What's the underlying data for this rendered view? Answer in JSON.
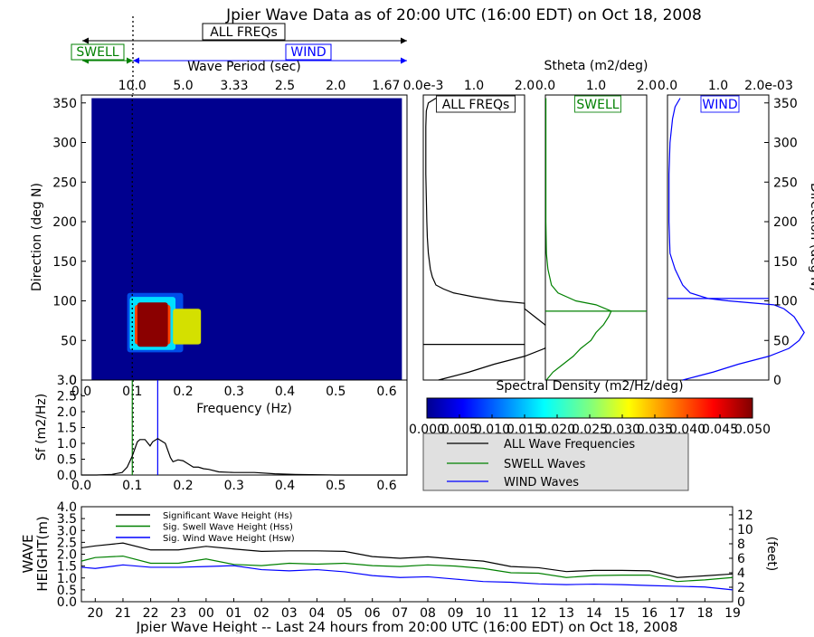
{
  "title": "Jpier Wave Data as of 20:00 UTC (16:00 EDT) on Oct 18, 2008",
  "header": {
    "all_freqs_label": "ALL FREQs",
    "swell_label": "SWELL",
    "wind_label": "WIND",
    "period_axis_label": "Wave Period (sec)",
    "period_ticks": [
      "10.0",
      "5.0",
      "3.33",
      "2.5",
      "2.0",
      "1.67"
    ]
  },
  "colors": {
    "all": "#000000",
    "swell": "#008000",
    "wind": "#0000ff",
    "field_bg": "#00008f"
  },
  "chart_data": [
    {
      "type": "heatmap",
      "id": "directional-spectrum",
      "xlabel": "Frequency (Hz)",
      "ylabel": "Direction (deg N)",
      "xlim": [
        0,
        0.64
      ],
      "ylim": [
        0,
        360
      ],
      "xticks": [
        "0.0",
        "0.1",
        "0.2",
        "0.3",
        "0.4",
        "0.5",
        "0.6"
      ],
      "yticks": [
        "0",
        "50",
        "100",
        "150",
        "200",
        "250",
        "300",
        "350"
      ],
      "swell_wind_separation_hz": 0.1,
      "grid": "off",
      "hot_spots": [
        {
          "f_range": [
            0.09,
            0.2
          ],
          "dir_range": [
            35,
            110
          ],
          "level": "low"
        },
        {
          "f_range": [
            0.095,
            0.185
          ],
          "dir_range": [
            38,
            105
          ],
          "level": "mid"
        },
        {
          "f_range": [
            0.105,
            0.175
          ],
          "dir_range": [
            45,
            95
          ],
          "level": "high"
        },
        {
          "f_range": [
            0.11,
            0.17
          ],
          "dir_range": [
            42,
            98
          ],
          "level": "max"
        },
        {
          "f_range": [
            0.18,
            0.235
          ],
          "dir_range": [
            45,
            90
          ],
          "level": "secondary"
        }
      ]
    },
    {
      "type": "bar",
      "id": "colorbar",
      "title": "Spectral Density (m2/Hz/deg)",
      "ticks": [
        "0.000",
        "0.005",
        "0.010",
        "0.015",
        "0.020",
        "0.025",
        "0.030",
        "0.035",
        "0.040",
        "0.045",
        "0.050"
      ],
      "range": [
        0,
        0.05
      ]
    },
    {
      "type": "line",
      "id": "frequency-spectrum",
      "xlabel": "Frequency (Hz)",
      "ylabel": "Sf (m2/Hz)",
      "xlim": [
        0,
        0.64
      ],
      "ylim": [
        0,
        3.0
      ],
      "xticks": [
        "0.0",
        "0.1",
        "0.2",
        "0.3",
        "0.4",
        "0.5",
        "0.6"
      ],
      "yticks": [
        "0.0",
        "0.5",
        "1.0",
        "1.5",
        "2.0",
        "2.5",
        "3.0"
      ],
      "swell_line_hz": 0.1,
      "wind_line_hz": 0.15,
      "x": [
        0.0,
        0.03,
        0.06,
        0.08,
        0.09,
        0.1,
        0.11,
        0.115,
        0.125,
        0.135,
        0.14,
        0.15,
        0.165,
        0.175,
        0.18,
        0.19,
        0.2,
        0.21,
        0.22,
        0.23,
        0.24,
        0.25,
        0.27,
        0.3,
        0.34,
        0.38,
        0.42,
        0.5,
        0.64
      ],
      "y": [
        0.0,
        0.0,
        0.02,
        0.08,
        0.25,
        0.6,
        1.05,
        1.12,
        1.12,
        0.92,
        1.05,
        1.15,
        1.0,
        0.55,
        0.42,
        0.48,
        0.45,
        0.35,
        0.25,
        0.25,
        0.2,
        0.18,
        0.1,
        0.08,
        0.08,
        0.04,
        0.02,
        0.0,
        0.0
      ]
    },
    {
      "type": "line",
      "id": "stheta-all",
      "title": "ALL FREQs",
      "xlabel": "Stheta (m2/deg)",
      "xticks": [
        "0.0e-3",
        "1.0",
        "2.0"
      ],
      "xlim": [
        0,
        2.0
      ],
      "ylim": [
        0,
        360
      ],
      "mean_direction": 45,
      "direction": [
        0,
        10,
        20,
        30,
        40,
        50,
        60,
        70,
        80,
        90,
        97,
        100,
        105,
        110,
        115,
        120,
        130,
        140,
        160,
        180,
        200,
        230,
        260,
        290,
        320,
        340,
        350,
        356
      ],
      "values": [
        0.3,
        0.9,
        1.4,
        2.0,
        2.4,
        2.5,
        2.5,
        2.4,
        2.2,
        2.0,
        2.0,
        1.5,
        1.0,
        0.6,
        0.4,
        0.25,
        0.18,
        0.14,
        0.1,
        0.08,
        0.07,
        0.06,
        0.05,
        0.05,
        0.05,
        0.06,
        0.1,
        0.25
      ]
    },
    {
      "type": "line",
      "id": "stheta-swell",
      "title": "SWELL",
      "xticks": [
        "0.0",
        "1.0",
        "2.0"
      ],
      "xlim": [
        0,
        2.0
      ],
      "ylim": [
        0,
        360
      ],
      "mean_direction": 87,
      "direction": [
        0,
        10,
        20,
        30,
        40,
        50,
        60,
        70,
        80,
        87,
        95,
        100,
        110,
        120,
        140,
        160,
        200,
        260,
        320,
        356
      ],
      "values": [
        0.02,
        0.15,
        0.35,
        0.55,
        0.7,
        0.9,
        1.0,
        1.15,
        1.25,
        1.3,
        1.0,
        0.6,
        0.25,
        0.12,
        0.05,
        0.02,
        0.01,
        0.01,
        0.01,
        0.01
      ]
    },
    {
      "type": "line",
      "id": "stheta-wind",
      "title": "WIND",
      "xticks": [
        "0.0",
        "1.0",
        "2.0e-03"
      ],
      "xlim": [
        0,
        2.0
      ],
      "ylim": [
        0,
        360
      ],
      "mean_direction": 103,
      "direction": [
        0,
        5,
        10,
        20,
        30,
        40,
        50,
        60,
        70,
        80,
        90,
        95,
        100,
        103,
        110,
        120,
        140,
        160,
        200,
        260,
        300,
        330,
        345,
        356
      ],
      "values": [
        0.3,
        0.6,
        0.9,
        1.4,
        2.0,
        2.4,
        2.6,
        2.7,
        2.6,
        2.5,
        2.3,
        2.1,
        1.2,
        0.8,
        0.45,
        0.3,
        0.15,
        0.05,
        0.03,
        0.03,
        0.05,
        0.1,
        0.15,
        0.25
      ]
    },
    {
      "type": "line",
      "id": "wave-height-24h",
      "title": "Jpier Wave Height -- Last 24 hours from 20:00 UTC (16:00 EDT) on Oct 18, 2008",
      "ylabel": "WAVE HEIGHT(m)",
      "ylabel_right": "(feet)",
      "ylim": [
        0,
        4.0
      ],
      "ylim_right_ft": [
        0,
        13.12
      ],
      "yticks": [
        "0.0",
        "0.5",
        "1.0",
        "1.5",
        "2.0",
        "2.5",
        "3.0",
        "3.5",
        "4.0"
      ],
      "yticks_right": [
        "0",
        "2",
        "4",
        "6",
        "8",
        "10",
        "12"
      ],
      "categories": [
        "20",
        "21",
        "22",
        "23",
        "00",
        "01",
        "02",
        "03",
        "04",
        "05",
        "06",
        "07",
        "08",
        "09",
        "10",
        "11",
        "12",
        "13",
        "14",
        "15",
        "16",
        "17",
        "18",
        "19"
      ],
      "x": [
        -0.5,
        0,
        1,
        2,
        3,
        4,
        5,
        6,
        7,
        8,
        9,
        10,
        11,
        12,
        13,
        14,
        15,
        16,
        17,
        18,
        19,
        20,
        21,
        22,
        23
      ],
      "series": [
        {
          "name": "Significant Wave Height (Hs)",
          "key": "all",
          "values": [
            2.27,
            2.35,
            2.47,
            2.18,
            2.18,
            2.33,
            2.22,
            2.12,
            2.14,
            2.14,
            2.12,
            1.9,
            1.83,
            1.89,
            1.79,
            1.71,
            1.48,
            1.43,
            1.27,
            1.32,
            1.32,
            1.3,
            1.02,
            1.09,
            1.17
          ]
        },
        {
          "name": "Sig. Swell Wave Height (Hss)",
          "key": "swell",
          "values": [
            1.71,
            1.86,
            1.92,
            1.62,
            1.62,
            1.8,
            1.57,
            1.52,
            1.62,
            1.58,
            1.62,
            1.52,
            1.48,
            1.55,
            1.5,
            1.4,
            1.22,
            1.2,
            1.02,
            1.1,
            1.12,
            1.12,
            0.85,
            0.92,
            1.02
          ]
        },
        {
          "name": "Sig. Wind Wave Height (Hsw)",
          "key": "wind",
          "values": [
            1.45,
            1.4,
            1.55,
            1.45,
            1.45,
            1.48,
            1.52,
            1.35,
            1.3,
            1.35,
            1.26,
            1.1,
            1.02,
            1.05,
            0.95,
            0.85,
            0.82,
            0.75,
            0.72,
            0.74,
            0.72,
            0.68,
            0.65,
            0.62,
            0.5
          ]
        }
      ]
    }
  ],
  "legend_main": {
    "all": "ALL Wave Frequencies",
    "swell": "SWELL Waves",
    "wind": "WIND Waves"
  }
}
